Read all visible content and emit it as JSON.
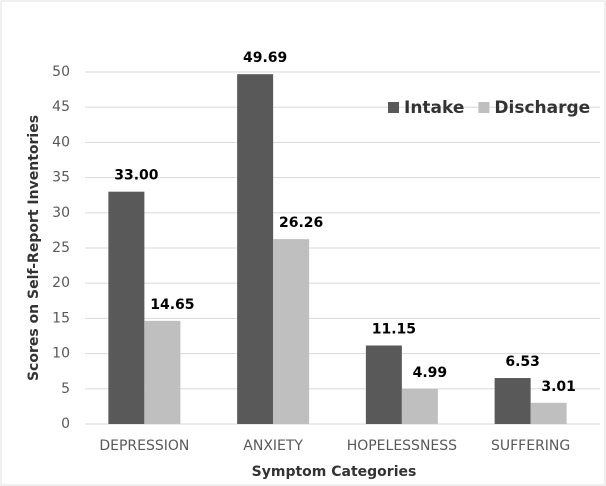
{
  "chart_data": {
    "type": "bar",
    "categories": [
      "DEPRESSION",
      "ANXIETY",
      "HOPELESSNESS",
      "SUFFERING"
    ],
    "series": [
      {
        "name": "Intake",
        "color": "#595959",
        "values": [
          33.0,
          49.69,
          11.15,
          6.53
        ],
        "value_labels": [
          "33.00",
          "49.69",
          "11.15",
          "6.53"
        ]
      },
      {
        "name": "Discharge",
        "color": "#bfbfbf",
        "values": [
          14.65,
          26.26,
          4.99,
          3.01
        ],
        "value_labels": [
          "14.65",
          "26.26",
          "4.99",
          "3.01"
        ]
      }
    ],
    "ylim": [
      0,
      50
    ],
    "yticks": [
      0,
      5,
      10,
      15,
      20,
      25,
      30,
      35,
      40,
      45,
      50
    ],
    "grid": true,
    "xlabel": "Symptom Categories",
    "ylabel": "Scores on Self-Report Inventories",
    "legend": "top-right"
  }
}
